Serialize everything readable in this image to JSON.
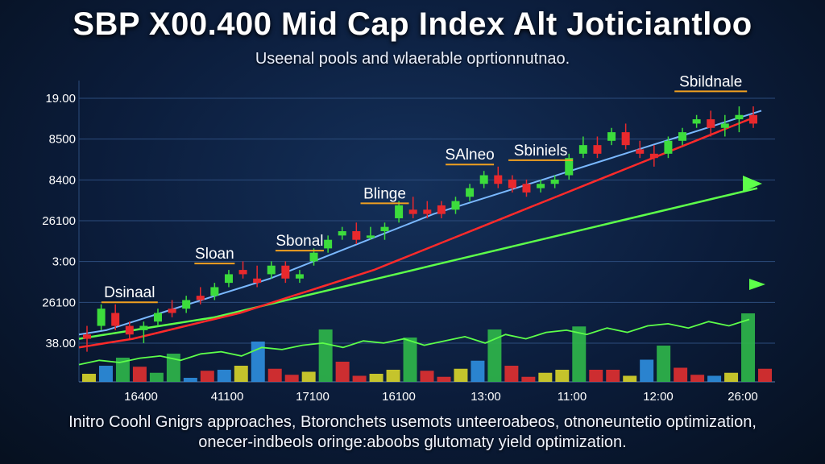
{
  "title": "SBP X00.400 Mid Cap Index Alt Joticiantloo",
  "subtitle": "Useenal pools and wlaerable oprtionnutnao.",
  "footer": {
    "line1": "Initro Coohl Gnigrs approaches, Btoronchets usemots unteeroabeos, otnoneuntetio optimization,",
    "line2": "onecer-indbeols oringe:aboobs glutomaty yield optimization."
  },
  "colors": {
    "up": "#3cdc3c",
    "down": "#e8292d",
    "blue_line": "#7ab8ff",
    "red_line": "#ff2a2a",
    "green_line": "#5dff4a",
    "bar_red": "#e23030",
    "bar_green": "#2fb84a",
    "bar_yellow": "#d9d62a",
    "bar_blue": "#2e8fe0"
  },
  "chart_data": {
    "type": "candlestick",
    "y_ticks": [
      "19.00",
      "8500",
      "8400",
      "26100",
      "3:00",
      "26100",
      "38.00"
    ],
    "x_ticks": [
      "16400",
      "41100",
      "17100",
      "16100",
      "13:00",
      "11:00",
      "12:00",
      "26:00"
    ],
    "annotations": [
      {
        "text": "Dsinaal",
        "candle": 3
      },
      {
        "text": "Sloan",
        "candle": 9
      },
      {
        "text": "Sbonal",
        "candle": 15
      },
      {
        "text": "Blinge",
        "candle": 21
      },
      {
        "text": "SAlneo",
        "candle": 27
      },
      {
        "text": "Sbiniels",
        "candle": 32
      },
      {
        "text": "Sbildnale",
        "candle": 44
      }
    ],
    "candles": [
      [
        3.7,
        3.9,
        3.3,
        3.6
      ],
      [
        3.9,
        4.4,
        3.8,
        4.3
      ],
      [
        4.2,
        4.4,
        3.8,
        3.9
      ],
      [
        3.9,
        4.0,
        3.6,
        3.7
      ],
      [
        3.8,
        4.0,
        3.5,
        3.9
      ],
      [
        4.0,
        4.3,
        3.9,
        4.2
      ],
      [
        4.3,
        4.5,
        4.1,
        4.2
      ],
      [
        4.3,
        4.6,
        4.2,
        4.5
      ],
      [
        4.6,
        4.8,
        4.4,
        4.5
      ],
      [
        4.6,
        4.9,
        4.5,
        4.8
      ],
      [
        4.9,
        5.2,
        4.8,
        5.1
      ],
      [
        5.2,
        5.4,
        5.0,
        5.1
      ],
      [
        5.0,
        5.3,
        4.8,
        4.9
      ],
      [
        5.1,
        5.4,
        5.0,
        5.3
      ],
      [
        5.3,
        5.4,
        4.9,
        5.0
      ],
      [
        5.0,
        5.2,
        4.9,
        5.1
      ],
      [
        5.4,
        5.7,
        5.3,
        5.6
      ],
      [
        5.7,
        6.0,
        5.6,
        5.9
      ],
      [
        6.0,
        6.2,
        5.9,
        6.1
      ],
      [
        6.1,
        6.3,
        5.8,
        5.9
      ],
      [
        6.0,
        6.2,
        5.9,
        6.0
      ],
      [
        6.1,
        6.3,
        5.9,
        6.2
      ],
      [
        6.4,
        6.8,
        6.3,
        6.7
      ],
      [
        6.6,
        6.9,
        6.4,
        6.5
      ],
      [
        6.6,
        6.8,
        6.4,
        6.5
      ],
      [
        6.7,
        6.8,
        6.4,
        6.5
      ],
      [
        6.6,
        6.9,
        6.5,
        6.8
      ],
      [
        6.9,
        7.2,
        6.8,
        7.1
      ],
      [
        7.2,
        7.5,
        7.1,
        7.4
      ],
      [
        7.4,
        7.6,
        7.1,
        7.2
      ],
      [
        7.3,
        7.4,
        7.0,
        7.1
      ],
      [
        7.2,
        7.3,
        6.9,
        7.0
      ],
      [
        7.1,
        7.3,
        7.0,
        7.2
      ],
      [
        7.2,
        7.4,
        7.1,
        7.3
      ],
      [
        7.4,
        7.9,
        7.3,
        7.8
      ],
      [
        7.9,
        8.3,
        7.8,
        8.1
      ],
      [
        8.1,
        8.3,
        7.8,
        7.9
      ],
      [
        8.2,
        8.5,
        8.1,
        8.4
      ],
      [
        8.4,
        8.6,
        8.0,
        8.1
      ],
      [
        8.0,
        8.2,
        7.8,
        7.9
      ],
      [
        7.9,
        8.1,
        7.6,
        7.8
      ],
      [
        7.9,
        8.3,
        7.8,
        8.2
      ],
      [
        8.2,
        8.5,
        8.1,
        8.4
      ],
      [
        8.6,
        8.8,
        8.5,
        8.7
      ],
      [
        8.7,
        8.9,
        8.3,
        8.5
      ],
      [
        8.5,
        8.8,
        8.3,
        8.6
      ],
      [
        8.7,
        9.0,
        8.4,
        8.8
      ],
      [
        8.8,
        9.0,
        8.5,
        8.6
      ]
    ],
    "ma_blue": [
      3.7,
      3.8,
      4.0,
      4.2,
      4.4,
      4.6,
      4.8,
      5.0,
      5.25,
      5.5,
      5.75,
      6.0,
      6.25,
      6.5,
      6.7,
      6.9,
      7.1,
      7.3,
      7.5,
      7.7,
      7.9,
      8.1,
      8.3,
      8.5,
      8.7,
      8.9
    ],
    "ma_red": [
      3.4,
      3.5,
      3.6,
      3.75,
      3.9,
      4.05,
      4.2,
      4.4,
      4.6,
      4.8,
      5.0,
      5.2,
      5.45,
      5.7,
      5.95,
      6.2,
      6.45,
      6.7,
      6.95,
      7.2,
      7.45,
      7.7,
      7.95,
      8.2,
      8.45,
      8.7
    ],
    "ma_green": [
      3.6,
      3.7,
      3.8,
      3.9,
      4.0,
      4.1,
      4.25,
      4.4,
      4.55,
      4.7,
      4.85,
      5.0,
      5.15,
      5.3,
      5.45,
      5.6,
      5.75,
      5.9,
      6.05,
      6.2,
      6.35,
      6.5,
      6.65,
      6.8,
      6.95,
      7.1
    ],
    "oscillator": [
      3.0,
      3.1,
      3.05,
      3.15,
      3.2,
      3.1,
      3.25,
      3.3,
      3.2,
      3.4,
      3.35,
      3.45,
      3.5,
      3.4,
      3.55,
      3.5,
      3.6,
      3.45,
      3.55,
      3.65,
      3.5,
      3.7,
      3.6,
      3.75,
      3.8,
      3.7,
      3.85,
      3.75,
      3.9,
      3.95,
      3.85,
      4.0,
      3.9,
      4.05
    ],
    "volume": [
      {
        "v": 0.8,
        "c": "yellow"
      },
      {
        "v": 1.6,
        "c": "blue"
      },
      {
        "v": 2.4,
        "c": "green"
      },
      {
        "v": 1.5,
        "c": "red"
      },
      {
        "v": 0.9,
        "c": "green"
      },
      {
        "v": 2.8,
        "c": "green"
      },
      {
        "v": 0.4,
        "c": "blue"
      },
      {
        "v": 1.1,
        "c": "red"
      },
      {
        "v": 1.2,
        "c": "blue"
      },
      {
        "v": 1.6,
        "c": "yellow"
      },
      {
        "v": 4.0,
        "c": "blue"
      },
      {
        "v": 1.3,
        "c": "red"
      },
      {
        "v": 0.7,
        "c": "red"
      },
      {
        "v": 1.0,
        "c": "yellow"
      },
      {
        "v": 5.2,
        "c": "green"
      },
      {
        "v": 2.0,
        "c": "red"
      },
      {
        "v": 0.6,
        "c": "red"
      },
      {
        "v": 0.8,
        "c": "yellow"
      },
      {
        "v": 1.2,
        "c": "yellow"
      },
      {
        "v": 4.4,
        "c": "green"
      },
      {
        "v": 1.1,
        "c": "red"
      },
      {
        "v": 0.5,
        "c": "red"
      },
      {
        "v": 1.3,
        "c": "yellow"
      },
      {
        "v": 2.1,
        "c": "blue"
      },
      {
        "v": 5.2,
        "c": "green"
      },
      {
        "v": 1.6,
        "c": "red"
      },
      {
        "v": 0.5,
        "c": "red"
      },
      {
        "v": 0.9,
        "c": "yellow"
      },
      {
        "v": 1.2,
        "c": "yellow"
      },
      {
        "v": 5.5,
        "c": "green"
      },
      {
        "v": 1.2,
        "c": "red"
      },
      {
        "v": 1.2,
        "c": "red"
      },
      {
        "v": 0.6,
        "c": "yellow"
      },
      {
        "v": 2.2,
        "c": "blue"
      },
      {
        "v": 3.6,
        "c": "green"
      },
      {
        "v": 1.4,
        "c": "red"
      },
      {
        "v": 0.7,
        "c": "red"
      },
      {
        "v": 0.6,
        "c": "blue"
      },
      {
        "v": 0.9,
        "c": "yellow"
      },
      {
        "v": 6.8,
        "c": "green"
      },
      {
        "v": 1.3,
        "c": "red"
      }
    ],
    "y_range": [
      2.6,
      9.6
    ],
    "volume_max": 8
  }
}
